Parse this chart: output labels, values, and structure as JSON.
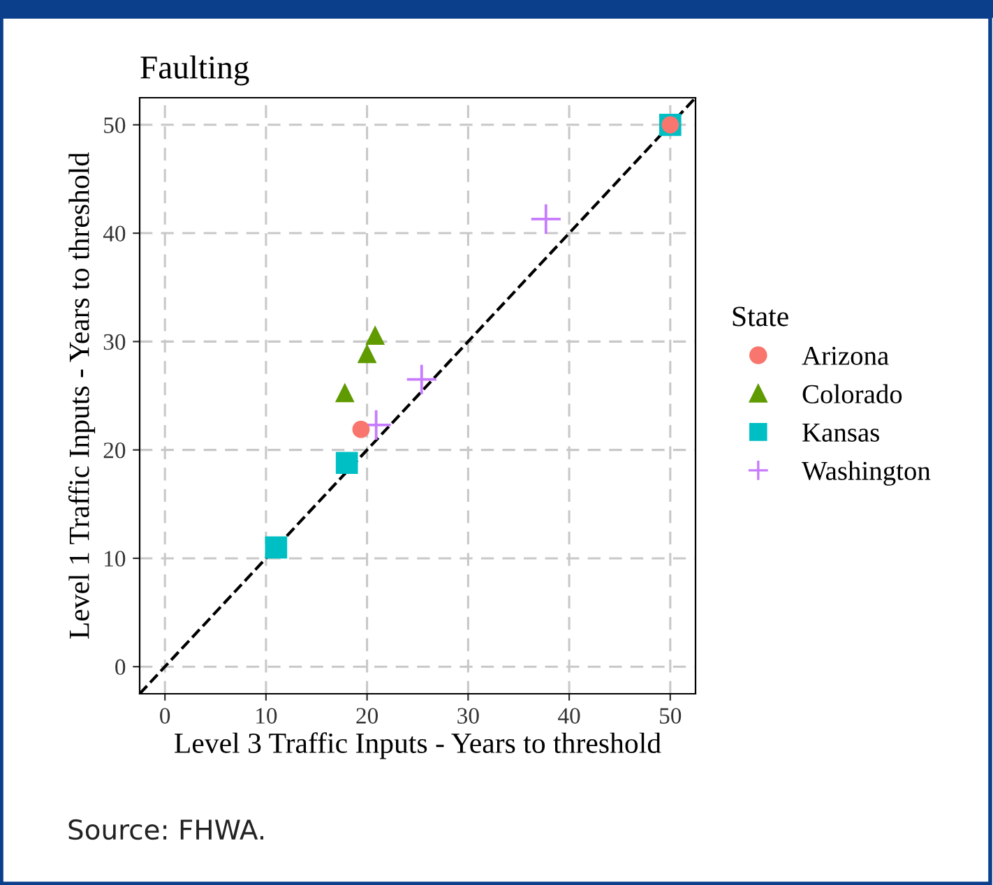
{
  "chart_data": {
    "type": "scatter",
    "title": "Faulting",
    "xlabel": "Level 3 Traffic Inputs - Years to threshold",
    "ylabel": "Level 1 Traffic Inputs - Years to threshold",
    "legend_title": "State",
    "legend": "right",
    "grid": true,
    "xlim": [
      -2.5,
      52.5
    ],
    "ylim": [
      -2.5,
      52.5
    ],
    "xticks": [
      0,
      10,
      20,
      30,
      40,
      50
    ],
    "yticks": [
      0,
      10,
      20,
      30,
      40,
      50
    ],
    "series": [
      {
        "name": "Arizona",
        "color": "#f8766d",
        "marker": "circle",
        "x": [
          50,
          19.4
        ],
        "values": [
          50,
          21.9
        ]
      },
      {
        "name": "Colorado",
        "color": "#5e9a00",
        "marker": "triangle",
        "x": [
          20.8,
          20.0,
          17.8
        ],
        "values": [
          30.6,
          28.9,
          25.3
        ]
      },
      {
        "name": "Kansas",
        "color": "#00bfc4",
        "marker": "square",
        "x": [
          11.0,
          18.0,
          50
        ],
        "values": [
          11.0,
          18.8,
          50
        ]
      },
      {
        "name": "Washington",
        "color": "#c77cff",
        "marker": "cross",
        "x": [
          37.7,
          25.4,
          20.9
        ],
        "values": [
          41.3,
          26.5,
          22.3
        ]
      },
      {
        "type": "line",
        "color": "#000000",
        "line_style": "dashed",
        "marker": "none",
        "x": [
          -2.5,
          52.5
        ],
        "values": [
          -2.5,
          52.5
        ]
      }
    ],
    "annotations": [
      "Source: FHWA."
    ]
  }
}
